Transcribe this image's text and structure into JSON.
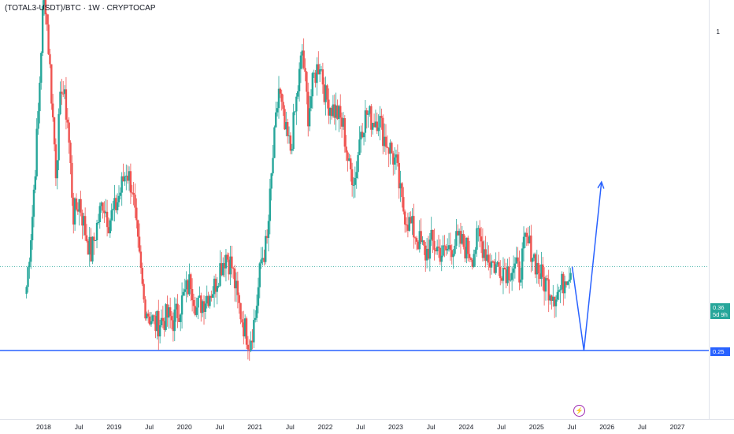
{
  "header": {
    "symbol_title": "(TOTAL3-USDT)/BTC · 1W · CRYPTOCAP"
  },
  "price_scale": {
    "top_label": "1",
    "last_price": "0.36",
    "countdown": "5d 9h",
    "level_label": "0.25"
  },
  "time_axis": [
    "2018",
    "Jul",
    "2019",
    "Jul",
    "2020",
    "Jul",
    "2021",
    "Jul",
    "2022",
    "Jul",
    "2023",
    "Jul",
    "2024",
    "Jul",
    "2025",
    "Jul",
    "2026",
    "Jul",
    "2027"
  ],
  "icons": {
    "event_marker": "lightning-bolt-icon"
  },
  "colors": {
    "up": "#26a69a",
    "down": "#ef5350",
    "drawing": "#2962ff"
  },
  "chart_data": {
    "type": "candlestick",
    "title": "(TOTAL3-USDT)/BTC · 1W · CRYPTOCAP",
    "ylabel": "",
    "scale": "log",
    "interval": "1W",
    "close_path": [
      [
        "2017-10",
        0.33
      ],
      [
        "2017-11",
        0.45
      ],
      [
        "2017-12",
        0.7
      ],
      [
        "2018-01",
        1.25
      ],
      [
        "2018-02",
        0.85
      ],
      [
        "2018-03",
        0.55
      ],
      [
        "2018-04",
        0.8
      ],
      [
        "2018-05",
        0.68
      ],
      [
        "2018-06",
        0.45
      ],
      [
        "2018-07",
        0.48
      ],
      [
        "2018-08",
        0.42
      ],
      [
        "2018-09",
        0.38
      ],
      [
        "2018-10",
        0.43
      ],
      [
        "2018-11",
        0.48
      ],
      [
        "2018-12",
        0.44
      ],
      [
        "2019-01",
        0.46
      ],
      [
        "2019-02",
        0.5
      ],
      [
        "2019-03",
        0.55
      ],
      [
        "2019-04",
        0.51
      ],
      [
        "2019-05",
        0.39
      ],
      [
        "2019-06",
        0.31
      ],
      [
        "2019-07",
        0.29
      ],
      [
        "2019-08",
        0.28
      ],
      [
        "2019-09",
        0.285
      ],
      [
        "2019-10",
        0.29
      ],
      [
        "2019-11",
        0.285
      ],
      [
        "2019-12",
        0.3
      ],
      [
        "2020-01",
        0.32
      ],
      [
        "2020-02",
        0.34
      ],
      [
        "2020-03",
        0.3
      ],
      [
        "2020-04",
        0.31
      ],
      [
        "2020-05",
        0.32
      ],
      [
        "2020-06",
        0.33
      ],
      [
        "2020-07",
        0.36
      ],
      [
        "2020-08",
        0.38
      ],
      [
        "2020-09",
        0.36
      ],
      [
        "2020-10",
        0.31
      ],
      [
        "2020-11",
        0.28
      ],
      [
        "2020-12",
        0.26
      ],
      [
        "2021-01",
        0.29
      ],
      [
        "2021-02",
        0.37
      ],
      [
        "2021-03",
        0.4
      ],
      [
        "2021-04",
        0.58
      ],
      [
        "2021-05",
        0.78
      ],
      [
        "2021-06",
        0.65
      ],
      [
        "2021-07",
        0.6
      ],
      [
        "2021-08",
        0.74
      ],
      [
        "2021-09",
        0.92
      ],
      [
        "2021-10",
        0.7
      ],
      [
        "2021-11",
        0.82
      ],
      [
        "2021-12",
        0.88
      ],
      [
        "2022-01",
        0.75
      ],
      [
        "2022-02",
        0.72
      ],
      [
        "2022-03",
        0.7
      ],
      [
        "2022-04",
        0.66
      ],
      [
        "2022-05",
        0.55
      ],
      [
        "2022-06",
        0.53
      ],
      [
        "2022-07",
        0.66
      ],
      [
        "2022-08",
        0.7
      ],
      [
        "2022-09",
        0.68
      ],
      [
        "2022-10",
        0.69
      ],
      [
        "2022-11",
        0.63
      ],
      [
        "2022-12",
        0.6
      ],
      [
        "2023-01",
        0.56
      ],
      [
        "2023-02",
        0.47
      ],
      [
        "2023-03",
        0.44
      ],
      [
        "2023-04",
        0.42
      ],
      [
        "2023-05",
        0.4
      ],
      [
        "2023-06",
        0.38
      ],
      [
        "2023-07",
        0.4
      ],
      [
        "2023-08",
        0.39
      ],
      [
        "2023-09",
        0.38
      ],
      [
        "2023-10",
        0.39
      ],
      [
        "2023-11",
        0.4
      ],
      [
        "2023-12",
        0.4
      ],
      [
        "2024-01",
        0.39
      ],
      [
        "2024-02",
        0.38
      ],
      [
        "2024-03",
        0.41
      ],
      [
        "2024-04",
        0.39
      ],
      [
        "2024-05",
        0.37
      ],
      [
        "2024-06",
        0.36
      ],
      [
        "2024-07",
        0.36
      ],
      [
        "2024-08",
        0.355
      ],
      [
        "2024-09",
        0.36
      ],
      [
        "2024-10",
        0.35
      ],
      [
        "2024-11",
        0.4
      ],
      [
        "2024-12",
        0.39
      ],
      [
        "2025-01",
        0.36
      ],
      [
        "2025-02",
        0.34
      ],
      [
        "2025-03",
        0.33
      ],
      [
        "2025-04",
        0.32
      ],
      [
        "2025-05",
        0.325
      ],
      [
        "2025-06",
        0.35
      ],
      [
        "2025-07",
        0.36
      ]
    ],
    "last_price": 0.36,
    "horizontal_level": 0.25,
    "projection": [
      [
        "2025-07",
        0.36
      ],
      [
        "2025-09",
        0.25
      ],
      [
        "2025-12",
        0.52
      ]
    ],
    "grid": false,
    "legend": "none"
  }
}
